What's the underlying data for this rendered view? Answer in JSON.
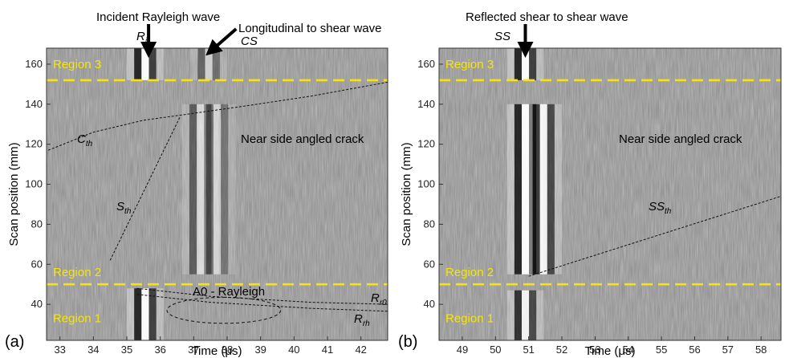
{
  "chart_data": [
    {
      "type": "heatmap",
      "panel_label": "(a)",
      "xlabel": "Time (μs)",
      "ylabel": "Scan position (mm)",
      "xlim": [
        32.6,
        42.8
      ],
      "ylim": [
        22,
        168
      ],
      "xticks": [
        33,
        34,
        35,
        36,
        37,
        38,
        39,
        40,
        41,
        42
      ],
      "yticks": [
        40,
        60,
        80,
        100,
        120,
        140,
        160
      ],
      "region_boundaries": [
        152,
        50
      ],
      "regions": [
        {
          "label": "Region 3",
          "y": 160
        },
        {
          "label": "Region 2",
          "y": 56
        },
        {
          "label": "Region 1",
          "y": 33
        }
      ],
      "wave_bands": [
        {
          "t": 35.55,
          "y0": 22,
          "y1": 48,
          "strength": 1.0
        },
        {
          "t": 35.55,
          "y0": 152,
          "y1": 168,
          "strength": 1.0
        },
        {
          "t": 37.2,
          "y0": 55,
          "y1": 140,
          "strength": 0.55
        },
        {
          "t": 37.7,
          "y0": 55,
          "y1": 140,
          "strength": 0.45
        },
        {
          "t": 37.45,
          "y0": 152,
          "y1": 168,
          "strength": 0.5
        }
      ],
      "theory_curves": [
        {
          "name": "C_th",
          "points": [
            [
              32.65,
              117
            ],
            [
              34.0,
              126
            ],
            [
              35.5,
              132
            ],
            [
              36.6,
              134.5
            ],
            [
              38.5,
              139
            ],
            [
              40.5,
              144
            ],
            [
              42.8,
              151
            ]
          ]
        },
        {
          "name": "S_th",
          "points": [
            [
              34.5,
              62
            ],
            [
              36.6,
              134
            ]
          ]
        },
        {
          "name": "R_r0",
          "points": [
            [
              35.3,
              48
            ],
            [
              37.5,
              44
            ],
            [
              40.5,
              41
            ],
            [
              42.8,
              40
            ]
          ]
        },
        {
          "name": "R_rh",
          "points": [
            [
              35.3,
              45
            ],
            [
              37.5,
              41
            ],
            [
              40.5,
              38
            ],
            [
              42.8,
              36.5
            ]
          ]
        }
      ],
      "annotations": [
        {
          "text": "Incident Rayleigh wave",
          "arrow_to": [
            35.65,
            164
          ]
        },
        {
          "text": "Longitudinal to shear wave",
          "arrow_to": [
            37.5,
            164
          ]
        },
        {
          "text": "Near side angled crack",
          "x": 40.4,
          "y": 120
        },
        {
          "text": "A0 - Rayleigh",
          "x": 37.8,
          "y": 36
        }
      ],
      "curve_labels": {
        "Ri": "R",
        "Ri_sub": "i",
        "CS": "CS",
        "Cth": "C",
        "Cth_sub": "th",
        "Sth": "S",
        "Sth_sub": "th",
        "Rr0": "R",
        "Rr0_sub": "r0",
        "Rrh": "R",
        "Rrh_sub": "rh"
      },
      "ellipse": {
        "cx": 37.9,
        "cy": 37,
        "rx": 1.7,
        "ry": 6.5
      }
    },
    {
      "type": "heatmap",
      "panel_label": "(b)",
      "xlabel": "Time (μs)",
      "ylabel": "Scan position (mm)",
      "xlim": [
        48.3,
        58.6
      ],
      "ylim": [
        22,
        168
      ],
      "xticks": [
        49,
        50,
        51,
        52,
        53,
        54,
        55,
        56,
        57,
        58
      ],
      "yticks": [
        40,
        60,
        80,
        100,
        120,
        140,
        160
      ],
      "region_boundaries": [
        152,
        50
      ],
      "regions": [
        {
          "label": "Region 3",
          "y": 160
        },
        {
          "label": "Region 2",
          "y": 56
        },
        {
          "label": "Region 1",
          "y": 33
        }
      ],
      "wave_bands": [
        {
          "t": 50.9,
          "y0": 22,
          "y1": 47,
          "strength": 0.9
        },
        {
          "t": 50.9,
          "y0": 152,
          "y1": 168,
          "strength": 1.0
        },
        {
          "t": 50.9,
          "y0": 55,
          "y1": 140,
          "strength": 1.0
        },
        {
          "t": 51.45,
          "y0": 55,
          "y1": 140,
          "strength": 0.9
        }
      ],
      "theory_curves": [
        {
          "name": "SS_th",
          "points": [
            [
              51.0,
              54
            ],
            [
              58.6,
              94
            ]
          ]
        }
      ],
      "annotations": [
        {
          "text": "Reflected shear to shear wave",
          "arrow_to": [
            50.9,
            164
          ]
        },
        {
          "text": "Near side angled crack",
          "x": 55.6,
          "y": 120
        }
      ],
      "curve_labels": {
        "SS": "SS",
        "SSth": "SS",
        "SSth_sub": "th"
      }
    }
  ]
}
